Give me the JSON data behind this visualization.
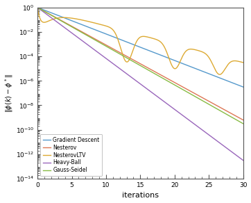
{
  "title": "",
  "xlabel": "iterations",
  "ylabel": "$\\|\\phi(k) - \\phi^*\\|$",
  "xlim": [
    0,
    30
  ],
  "ylim_log": [
    -14,
    0
  ],
  "n_points": 3001,
  "colors": {
    "gradient_descent": "#5599cc",
    "nesterov": "#dd7755",
    "nesterovLTV": "#ddaa33",
    "heavy_ball": "#9966bb",
    "gauss_seidel": "#88bb44"
  },
  "legend_labels": [
    "Gradient Descent",
    "Nesterov",
    "NesterovLTV",
    "Heavy-Ball",
    "Gauss-Seidel"
  ],
  "background_color": "#ffffff",
  "figsize": [
    3.62,
    2.92
  ],
  "dpi": 100
}
